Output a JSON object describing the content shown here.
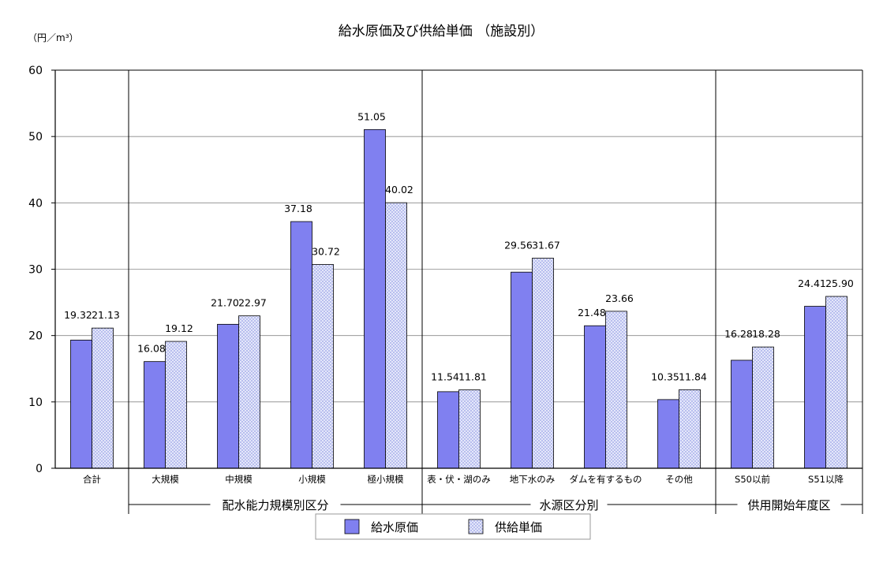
{
  "chart_data": {
    "type": "bar",
    "title": "給水原価及び供給単価 （施設別）",
    "unit_label": "（円／m³）",
    "ylim": [
      0,
      60
    ],
    "yticks": [
      "0",
      "10",
      "20",
      "30",
      "40",
      "50",
      "60"
    ],
    "grid": true,
    "legend_position": "bottom",
    "categories": [
      "合計",
      "大規模",
      "中規模",
      "小規模",
      "極小規模",
      "表・伏・湖のみ",
      "地下水のみ",
      "ダムを有するもの",
      "その他",
      "S50以前",
      "S51以降"
    ],
    "series": [
      {
        "name": "給水原価",
        "values": [
          19.32,
          16.08,
          21.7,
          37.18,
          51.05,
          11.54,
          29.56,
          21.48,
          10.35,
          16.28,
          24.41
        ],
        "labels": [
          "19.32",
          "16.08",
          "21.70",
          "37.18",
          "51.05",
          "11.54",
          "29.56",
          "21.48",
          "10.35",
          "16.28",
          "24.41"
        ],
        "color": "#8080f0"
      },
      {
        "name": "供給単価",
        "values": [
          21.13,
          19.12,
          22.97,
          30.72,
          40.02,
          11.81,
          31.67,
          23.66,
          11.84,
          18.28,
          25.9
        ],
        "labels": [
          "21.13",
          "19.12",
          "22.97",
          "30.72",
          "40.02",
          "11.81",
          "31.67",
          "23.66",
          "11.84",
          "18.28",
          "25.90"
        ],
        "color": "#c8cdf0"
      }
    ],
    "groups": [
      {
        "label": "配水能力規模別区分",
        "categories": [
          "大規模",
          "中規模",
          "小規模",
          "極小規模"
        ]
      },
      {
        "label": "水源区分別",
        "categories": [
          "表・伏・湖のみ",
          "地下水のみ",
          "ダムを有するもの",
          "その他"
        ]
      },
      {
        "label": "供用開始年度区",
        "categories": [
          "S50以前",
          "S51以降"
        ]
      }
    ]
  }
}
